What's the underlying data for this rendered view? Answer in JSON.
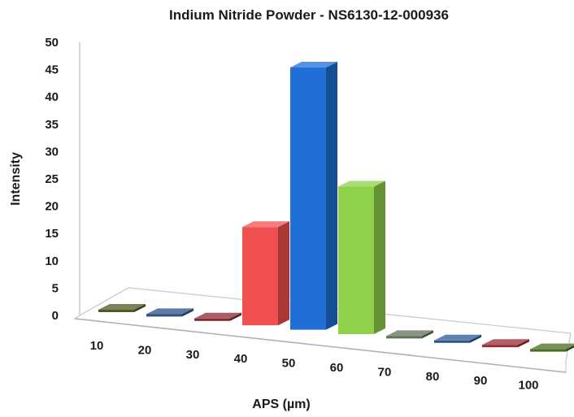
{
  "chart_data": {
    "type": "bar",
    "title": "Indium Nitride Powder - NS6130-12-000936",
    "xlabel": "APS (µm)",
    "ylabel": "Intensity",
    "categories": [
      "10",
      "20",
      "30",
      "40",
      "50",
      "60",
      "70",
      "80",
      "90",
      "100"
    ],
    "values": [
      0,
      0,
      0,
      18,
      48,
      27,
      0,
      0,
      0,
      0
    ],
    "ylim": [
      0,
      50
    ],
    "yticks": [
      "0",
      "5",
      "10",
      "15",
      "20",
      "25",
      "30",
      "35",
      "40",
      "45",
      "50"
    ],
    "style": "3d-columns",
    "grid": false,
    "legend": "none",
    "colors": [
      "#4f5a26",
      "#2a4f86",
      "#8c2830",
      "#f05050",
      "#1f6fd6",
      "#8fd24a",
      "#5f7257",
      "#2d5792",
      "#9a2a33",
      "#4a6b22"
    ]
  }
}
